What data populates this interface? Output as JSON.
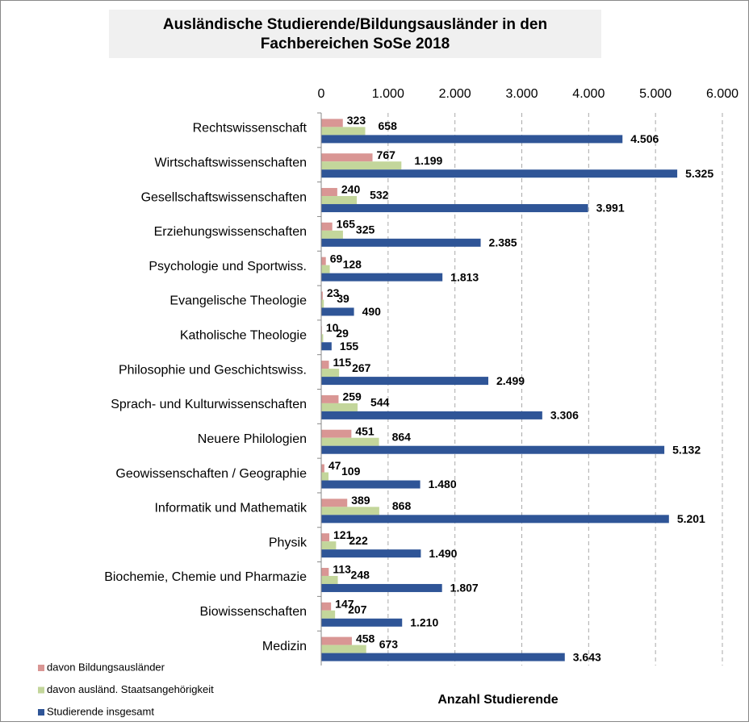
{
  "chart_data": {
    "type": "barh",
    "title": "Ausländische Studierende/Bildungsausländer in den Fachbereichen SoSe 2018",
    "xlabel": "Anzahl Studierende",
    "categories": [
      "Rechtswissenschaft",
      "Wirtschaftswissenschaften",
      "Gesellschaftswissenschaften",
      "Erziehungswissenschaften",
      "Psychologie und Sportwiss.",
      "Evangelische Theologie",
      "Katholische Theologie",
      "Philosophie und Geschichtswiss.",
      "Sprach- und Kulturwissenschaften",
      "Neuere Philologien",
      "Geowissenschaften / Geographie",
      "Informatik und Mathematik",
      "Physik",
      "Biochemie, Chemie und Pharmazie",
      "Biowissenschaften",
      "Medizin"
    ],
    "series": [
      {
        "name": "davon Bildungsausländer",
        "color": "#d99694",
        "values": [
          323,
          767,
          240,
          165,
          69,
          23,
          10,
          115,
          259,
          451,
          47,
          389,
          121,
          113,
          147,
          458
        ],
        "value_labels": [
          "323",
          "767",
          "240",
          "165",
          "69",
          "23",
          "10",
          "115",
          "259",
          "451",
          "47",
          "389",
          "121",
          "113",
          "147",
          "458"
        ]
      },
      {
        "name": "davon ausländ. Staatsangehörigkeit",
        "color": "#c3d69b",
        "values": [
          658,
          1199,
          532,
          325,
          128,
          39,
          29,
          267,
          544,
          864,
          109,
          868,
          222,
          248,
          207,
          673
        ],
        "value_labels": [
          "658",
          "1.199",
          "532",
          "325",
          "128",
          "39",
          "29",
          "267",
          "544",
          "864",
          "109",
          "868",
          "222",
          "248",
          "207",
          "673"
        ]
      },
      {
        "name": "Studierende insgesamt",
        "color": "#2f5597",
        "values": [
          4506,
          5325,
          3991,
          2385,
          1813,
          490,
          155,
          2499,
          3306,
          5132,
          1480,
          5201,
          1490,
          1807,
          1210,
          3643
        ],
        "value_labels": [
          "4.506",
          "5.325",
          "3.991",
          "2.385",
          "1.813",
          "490",
          "155",
          "2.499",
          "3.306",
          "5.132",
          "1.480",
          "5.201",
          "1.490",
          "1.807",
          "1.210",
          "3.643"
        ]
      }
    ],
    "xlim": [
      0,
      6000
    ],
    "xticks": [
      0,
      {
        "value": 1000,
        "label": "1.000"
      },
      {
        "value": 2000,
        "label": "2.000"
      },
      {
        "value": 3000,
        "label": "3.000"
      },
      {
        "value": 4000,
        "label": "4.000"
      },
      {
        "value": 5000,
        "label": "5.000"
      },
      {
        "value": 6000,
        "label": "6.000"
      }
    ],
    "grid": true,
    "legend": "lower left"
  }
}
